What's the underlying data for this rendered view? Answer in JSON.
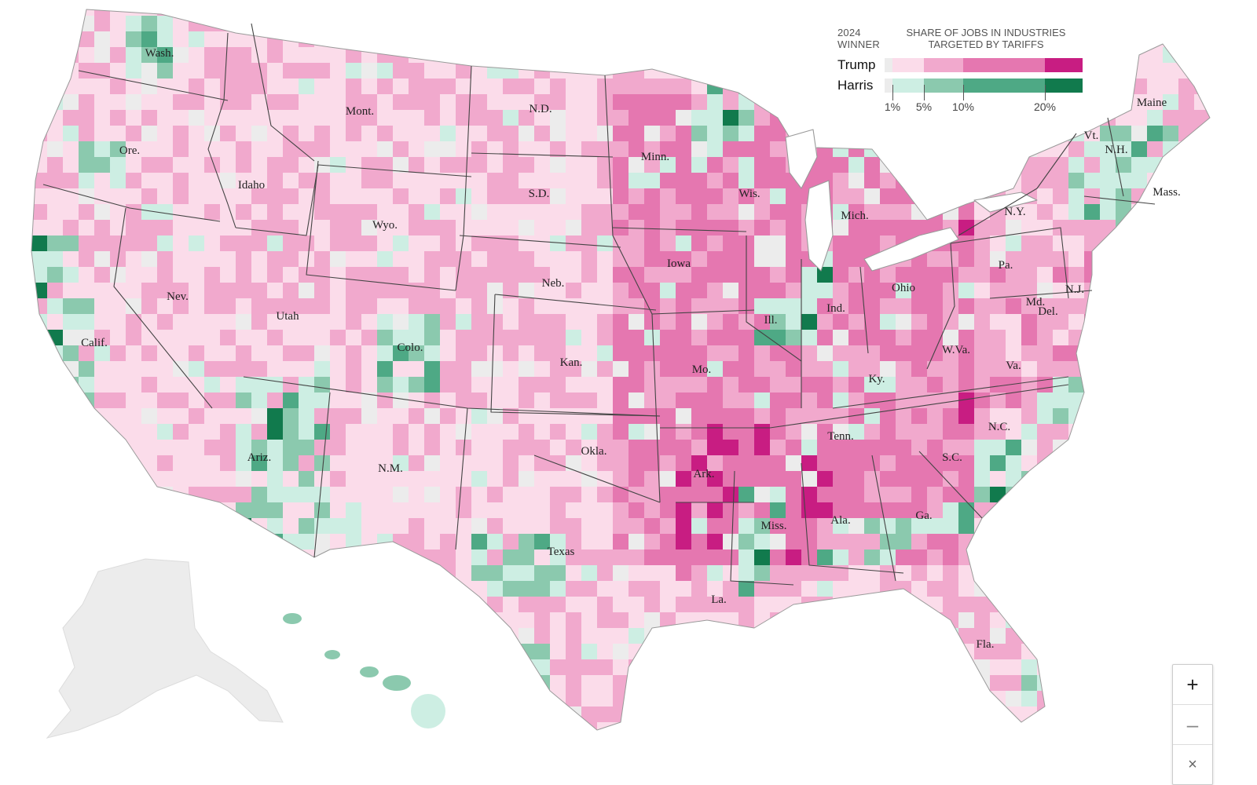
{
  "legend": {
    "winner_header": [
      "2024",
      "WINNER"
    ],
    "share_header": [
      "SHARE OF JOBS IN INDUSTRIES",
      "TARGETED BY TARIFFS"
    ],
    "rows": [
      {
        "name": "Trump",
        "colors": [
          "#ececec",
          "#fbdcea",
          "#f1a9cd",
          "#e577b0",
          "#c81d82"
        ]
      },
      {
        "name": "Harris",
        "colors": [
          "#ececec",
          "#cdeee3",
          "#8bc9ae",
          "#4ea985",
          "#117a4d"
        ]
      }
    ],
    "ticks": [
      "1%",
      "5%",
      "10%",
      "20%"
    ]
  },
  "colors": {
    "no_data": "#ececec",
    "trump": [
      "#fbdcea",
      "#f1a9cd",
      "#e577b0",
      "#c81d82"
    ],
    "harris": [
      "#cdeee3",
      "#8bc9ae",
      "#4ea985",
      "#117a4d"
    ],
    "border": "#444444"
  },
  "state_labels": [
    {
      "id": "wa",
      "text": "Wash."
    },
    {
      "id": "or",
      "text": "Ore."
    },
    {
      "id": "ca",
      "text": "Calif."
    },
    {
      "id": "id",
      "text": "Idaho"
    },
    {
      "id": "nv",
      "text": "Nev."
    },
    {
      "id": "mt",
      "text": "Mont."
    },
    {
      "id": "wy",
      "text": "Wyo."
    },
    {
      "id": "ut",
      "text": "Utah"
    },
    {
      "id": "az",
      "text": "Ariz."
    },
    {
      "id": "co",
      "text": "Colo."
    },
    {
      "id": "nm",
      "text": "N.M."
    },
    {
      "id": "nd",
      "text": "N.D."
    },
    {
      "id": "sd",
      "text": "S.D."
    },
    {
      "id": "ne",
      "text": "Neb."
    },
    {
      "id": "ks",
      "text": "Kan."
    },
    {
      "id": "ok",
      "text": "Okla."
    },
    {
      "id": "tx",
      "text": "Texas"
    },
    {
      "id": "mn",
      "text": "Minn."
    },
    {
      "id": "ia",
      "text": "Iowa"
    },
    {
      "id": "mo",
      "text": "Mo."
    },
    {
      "id": "ar",
      "text": "Ark."
    },
    {
      "id": "la",
      "text": "La."
    },
    {
      "id": "wi",
      "text": "Wis."
    },
    {
      "id": "il",
      "text": "Ill."
    },
    {
      "id": "mi",
      "text": "Mich."
    },
    {
      "id": "in",
      "text": "Ind."
    },
    {
      "id": "oh",
      "text": "Ohio"
    },
    {
      "id": "ky",
      "text": "Ky."
    },
    {
      "id": "tn",
      "text": "Tenn."
    },
    {
      "id": "ms",
      "text": "Miss."
    },
    {
      "id": "al",
      "text": "Ala."
    },
    {
      "id": "ga",
      "text": "Ga."
    },
    {
      "id": "fl",
      "text": "Fla."
    },
    {
      "id": "sc",
      "text": "S.C."
    },
    {
      "id": "nc",
      "text": "N.C."
    },
    {
      "id": "va",
      "text": "Va."
    },
    {
      "id": "wv",
      "text": "W.Va."
    },
    {
      "id": "pa",
      "text": "Pa."
    },
    {
      "id": "ny",
      "text": "N.Y."
    },
    {
      "id": "md",
      "text": "Md."
    },
    {
      "id": "de",
      "text": "Del."
    },
    {
      "id": "nj",
      "text": "N.J."
    },
    {
      "id": "vt",
      "text": "Vt."
    },
    {
      "id": "nh",
      "text": "N.H."
    },
    {
      "id": "ma",
      "text": "Mass."
    },
    {
      "id": "me",
      "text": "Maine"
    }
  ],
  "zoom": {
    "in_label": "+",
    "out_label": "–",
    "reset_label": "×"
  }
}
